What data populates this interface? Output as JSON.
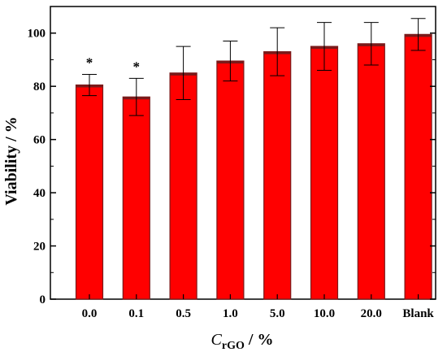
{
  "chart_data": {
    "type": "bar",
    "categories": [
      "0.0",
      "0.1",
      "0.5",
      "1.0",
      "5.0",
      "10.0",
      "20.0",
      "Blank"
    ],
    "values": [
      80.5,
      76,
      85,
      89.5,
      93,
      95,
      96,
      99.5
    ],
    "errors": [
      4,
      7,
      10,
      7.5,
      9,
      9,
      8,
      6
    ],
    "annotations": [
      "*",
      "*",
      "",
      "",
      "",
      "",
      "",
      ""
    ],
    "ylabel": "Viability / %",
    "xlabel_main": "C",
    "xlabel_sub": "rGO",
    "xlabel_tail": " / %",
    "ylim": [
      0,
      110
    ],
    "yticks": [
      0,
      20,
      40,
      60,
      80,
      100
    ],
    "bar_color": "#ff0000",
    "bar_edge_color": "#7a1a1a",
    "grid": false
  }
}
